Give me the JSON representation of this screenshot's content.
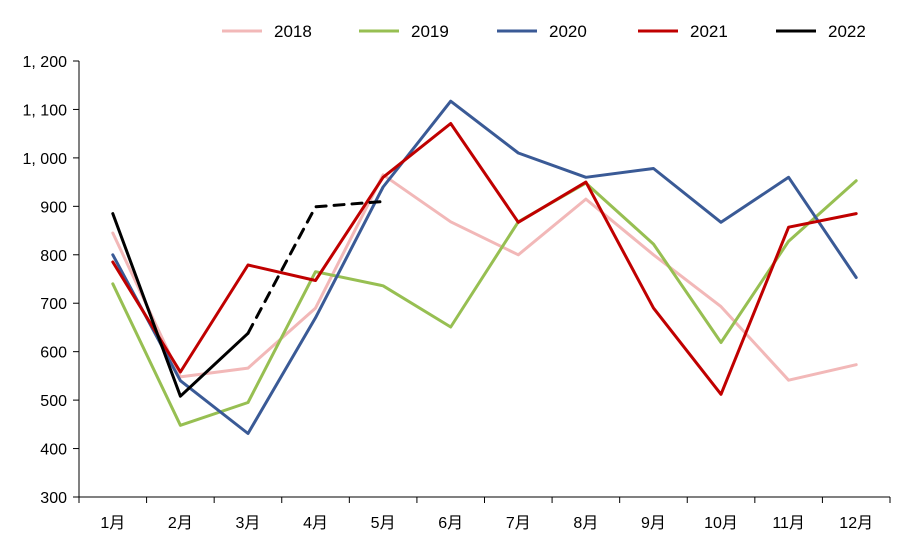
{
  "chart_data": {
    "type": "line",
    "title": "",
    "xlabel": "",
    "ylabel": "",
    "categories": [
      "1月",
      "2月",
      "3月",
      "4月",
      "5月",
      "6月",
      "7月",
      "8月",
      "9月",
      "10月",
      "11月",
      "12月"
    ],
    "ylim": [
      300,
      1200
    ],
    "yticks": [
      300,
      400,
      500,
      600,
      700,
      800,
      900,
      1000,
      1100,
      1200
    ],
    "ytick_labels": [
      "300",
      "400",
      "500",
      "600",
      "700",
      "800",
      "900",
      "1, 000",
      "1, 100",
      "1, 200"
    ],
    "grid": false,
    "legend_position": "top",
    "series": [
      {
        "name": "2018",
        "color": "#f2b8b8",
        "dash": false,
        "values": [
          845,
          548,
          566,
          690,
          965,
          868,
          800,
          915,
          800,
          693,
          541,
          573
        ]
      },
      {
        "name": "2019",
        "color": "#97bf52",
        "dash": false,
        "values": [
          740,
          448,
          495,
          765,
          736,
          651,
          868,
          948,
          822,
          619,
          828,
          953
        ]
      },
      {
        "name": "2020",
        "color": "#3a5a96",
        "dash": false,
        "values": [
          800,
          540,
          431,
          670,
          940,
          1117,
          1010,
          960,
          978,
          867,
          960,
          753
        ]
      },
      {
        "name": "2021",
        "color": "#c00000",
        "dash": false,
        "values": [
          785,
          558,
          779,
          747,
          960,
          1071,
          867,
          950,
          690,
          512,
          857,
          885
        ]
      },
      {
        "name": "2022",
        "color": "#000000",
        "dash": false,
        "values": [
          885,
          508,
          638,
          null,
          null,
          null,
          null,
          null,
          null,
          null,
          null,
          null
        ]
      },
      {
        "name": "",
        "color": "#000000",
        "dash": true,
        "values": [
          null,
          null,
          638,
          899,
          910,
          null,
          null,
          null,
          null,
          null,
          null,
          null
        ]
      }
    ]
  }
}
